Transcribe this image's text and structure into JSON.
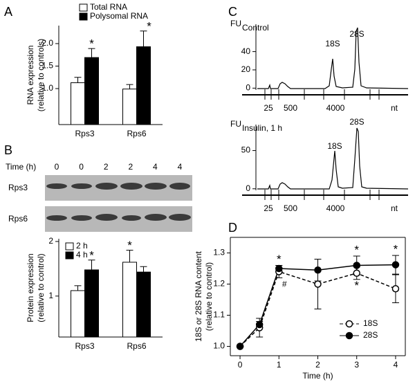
{
  "panel_labels": [
    "A",
    "B",
    "C",
    "D"
  ],
  "chart_data": [
    {
      "type": "bar",
      "ylabel": [
        "RNA expression",
        "(relative to controls)"
      ],
      "categories": [
        "Rps3",
        "Rps6"
      ],
      "series": [
        {
          "name": "Total RNA",
          "color": "#ffffff",
          "values": [
            1.13,
            0.99
          ],
          "errors": [
            0.12,
            0.1
          ]
        },
        {
          "name": "Polysomal RNA",
          "color": "#000000",
          "values": [
            1.69,
            1.93
          ],
          "errors": [
            0.2,
            0.35
          ]
        }
      ],
      "annotations": [
        {
          "text": "*",
          "category": "Rps3",
          "series": "Polysomal RNA"
        },
        {
          "text": "*",
          "category": "Rps6",
          "series": "Polysomal RNA"
        }
      ],
      "ylim": [
        0.2,
        2.4
      ],
      "yticks": [
        {
          "value": 1,
          "label": "1.0"
        },
        1.5,
        {
          "value": 2,
          "label": "2.0"
        }
      ],
      "legend": "top"
    },
    {
      "type": "blot",
      "title": "Time (h)",
      "lanes": [
        "0",
        "0",
        "2",
        "2",
        "4",
        "4"
      ],
      "rows": [
        "Rps3",
        "Rps6"
      ]
    },
    {
      "type": "bar",
      "ylabel": [
        "Protein expression",
        "(relative to control)"
      ],
      "categories": [
        "Rps3",
        "Rps6"
      ],
      "series": [
        {
          "name": "2 h",
          "color": "#ffffff",
          "values": [
            1.1,
            1.62
          ],
          "errors": [
            0.09,
            0.22
          ]
        },
        {
          "name": "4 h",
          "color": "#000000",
          "values": [
            1.48,
            1.44
          ],
          "errors": [
            0.18,
            0.1
          ]
        }
      ],
      "annotations": [
        {
          "text": "*",
          "category": "Rps3",
          "series": "4 h"
        },
        {
          "text": "*",
          "category": "Rps6",
          "series": "2 h"
        }
      ],
      "ylim": [
        0.25,
        2.05
      ],
      "yticks": [
        1,
        2
      ],
      "legend": "upper left"
    },
    {
      "type": "electropherogram",
      "ylabel": "FU",
      "label": "Control",
      "ylim": [
        -2,
        70
      ],
      "yticks": [
        0,
        20,
        40
      ],
      "xtick_labels": [
        "25",
        "500",
        "4000"
      ],
      "xlabel": "nt",
      "peaks": [
        "18S",
        "28S"
      ]
    },
    {
      "type": "electropherogram",
      "ylabel": "FU",
      "label": "Insulin, 1 h",
      "ylim": [
        -2,
        84
      ],
      "yticks": [
        0,
        50
      ],
      "xtick_labels": [
        "25",
        "500",
        "4000"
      ],
      "xlabel": "nt",
      "peaks": [
        "18S",
        "28S"
      ]
    },
    {
      "type": "line",
      "ylabel": [
        "18S or 28S RNA content",
        "(relative to control)"
      ],
      "xlabel": "Time (h)",
      "x": [
        0,
        0.5,
        1,
        2,
        3,
        4
      ],
      "series": [
        {
          "name": "18S",
          "color": "#000000",
          "dashed": true,
          "filled": false,
          "values": [
            1.0,
            1.06,
            1.24,
            1.2,
            1.235,
            1.185
          ],
          "errors": [
            0,
            0.03,
            0.02,
            0.08,
            0.02,
            0.045
          ]
        },
        {
          "name": "28S",
          "color": "#000000",
          "dashed": false,
          "filled": true,
          "values": [
            1.0,
            1.07,
            1.25,
            1.245,
            1.26,
            1.262
          ],
          "errors": [
            0,
            0.01,
            0.01,
            0.035,
            0.03,
            0.03
          ]
        }
      ],
      "annotations": [
        {
          "text": "*",
          "x": 1,
          "series": "28S"
        },
        {
          "text": "#",
          "x": 1,
          "series": "18S"
        },
        {
          "text": "*",
          "x": 3,
          "series": "28S"
        },
        {
          "text": "*",
          "x": 3,
          "series": "18S"
        },
        {
          "text": "*",
          "x": 4,
          "series": "28S"
        }
      ],
      "xlim": [
        -0.25,
        4.25
      ],
      "xticks": [
        0,
        1,
        2,
        3,
        4
      ],
      "ylim": [
        0.97,
        1.35
      ],
      "yticks": [
        {
          "value": 1,
          "label": "1.0"
        },
        1.1,
        1.2,
        1.3
      ],
      "legend": "lower right"
    }
  ]
}
